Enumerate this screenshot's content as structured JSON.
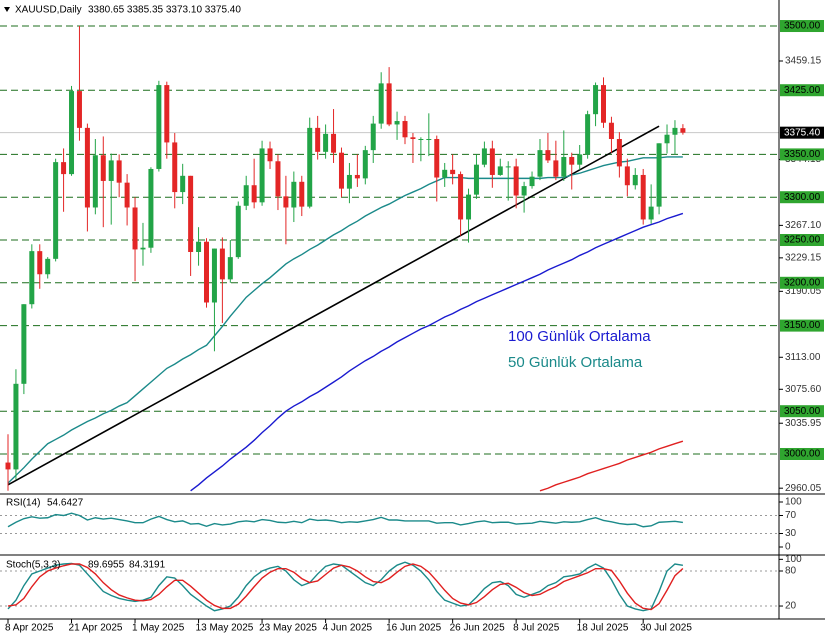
{
  "chart_data": [
    {
      "type": "candlestick",
      "symbol": "XAUUSD,Daily",
      "ohlc_label": "3380.65 3385.35 3373.10 3375.40",
      "categories": [
        "8 Apr 2025",
        null,
        null,
        null,
        null,
        null,
        null,
        null,
        "21 Apr 2025",
        null,
        null,
        null,
        null,
        null,
        null,
        null,
        "1 May 2025",
        null,
        null,
        null,
        null,
        null,
        null,
        null,
        "13 May 2025",
        null,
        null,
        null,
        null,
        null,
        null,
        null,
        "23 May 2025",
        null,
        null,
        null,
        null,
        null,
        null,
        null,
        "4 Jun 2025",
        null,
        null,
        null,
        null,
        null,
        null,
        null,
        "16 Jun 2025",
        null,
        null,
        null,
        null,
        null,
        null,
        null,
        "26 Jun 2025",
        null,
        null,
        null,
        null,
        null,
        null,
        null,
        "8 Jul 2025",
        null,
        null,
        null,
        null,
        null,
        null,
        null,
        "18 Jul 2025",
        null,
        null,
        null,
        null,
        null,
        null,
        null,
        "30 Jul 2025",
        null,
        null,
        null,
        null,
        null
      ],
      "open": [
        2990,
        2982,
        3082,
        3175,
        3237,
        3210,
        3228,
        3341,
        3327,
        3424,
        3381,
        3288,
        3349,
        3319,
        3343,
        3317,
        3288,
        3239,
        3241,
        3333,
        3431,
        3364,
        3306,
        3325,
        3236,
        3248,
        3177,
        3240,
        3204,
        3230,
        3290,
        3314,
        3294,
        3357,
        3342,
        3301,
        3288,
        3318,
        3289,
        3381,
        3353,
        3374,
        3352,
        3310,
        3326,
        3322,
        3355,
        3386,
        3433,
        3385,
        3389,
        3370,
        3368,
        3368,
        3368,
        3323,
        3332,
        3327,
        3274,
        3303,
        3338,
        3357,
        3326,
        3336,
        3336,
        3302,
        3313,
        3324,
        3355,
        3343,
        3324,
        3347,
        3338,
        3350,
        3397,
        3431,
        3387,
        3368,
        3336,
        3314,
        3326,
        3274,
        3289,
        3363,
        3373,
        3380.65
      ],
      "high": [
        3023,
        3099,
        3175,
        3245,
        3245,
        3230,
        3345,
        3357,
        3430,
        3500,
        3386,
        3368,
        3371,
        3351,
        3350,
        3327,
        3300,
        3270,
        3335,
        3436,
        3435,
        3375,
        3339,
        3325,
        3265,
        3252,
        3240,
        3253,
        3250,
        3295,
        3325,
        3345,
        3366,
        3365,
        3350,
        3325,
        3330,
        3325,
        3393,
        3395,
        3385,
        3403,
        3358,
        3340,
        3350,
        3360,
        3395,
        3446,
        3452,
        3400,
        3395,
        3375,
        3370,
        3398,
        3372,
        3340,
        3350,
        3330,
        3310,
        3350,
        3365,
        3366,
        3345,
        3342,
        3345,
        3318,
        3330,
        3368,
        3375,
        3366,
        3378,
        3352,
        3361,
        3401,
        3434,
        3440,
        3394,
        3376,
        3345,
        3334,
        3333,
        3315,
        3363,
        3385,
        3390,
        3385.35
      ],
      "low": [
        2957,
        2970,
        3070,
        3170,
        3193,
        3205,
        3225,
        3283,
        3325,
        3366,
        3260,
        3280,
        3265,
        3268,
        3300,
        3267,
        3202,
        3220,
        3235,
        3330,
        3345,
        3287,
        3292,
        3208,
        3220,
        3171,
        3120,
        3153,
        3200,
        3228,
        3285,
        3287,
        3290,
        3333,
        3285,
        3245,
        3271,
        3278,
        3287,
        3344,
        3345,
        3340,
        3300,
        3293,
        3312,
        3315,
        3340,
        3380,
        3383,
        3367,
        3362,
        3340,
        3342,
        3348,
        3295,
        3312,
        3315,
        3255,
        3247,
        3298,
        3335,
        3311,
        3325,
        3296,
        3287,
        3282,
        3310,
        3320,
        3340,
        3320,
        3319,
        3309,
        3332,
        3345,
        3383,
        3381,
        3352,
        3323,
        3301,
        3309,
        3268,
        3269,
        3280,
        3351,
        3350,
        3373.1
      ],
      "close": [
        2982,
        3082,
        3175,
        3237,
        3210,
        3228,
        3341,
        3327,
        3424,
        3381,
        3288,
        3349,
        3319,
        3343,
        3317,
        3288,
        3239,
        3241,
        3333,
        3431,
        3364,
        3306,
        3325,
        3236,
        3248,
        3177,
        3240,
        3204,
        3230,
        3290,
        3314,
        3294,
        3357,
        3342,
        3301,
        3288,
        3318,
        3289,
        3381,
        3353,
        3374,
        3352,
        3310,
        3326,
        3322,
        3355,
        3386,
        3433,
        3385,
        3389,
        3370,
        3368,
        3368,
        3368,
        3323,
        3332,
        3327,
        3274,
        3303,
        3338,
        3357,
        3326,
        3336,
        3336,
        3302,
        3313,
        3324,
        3355,
        3343,
        3324,
        3347,
        3338,
        3350,
        3397,
        3431,
        3387,
        3368,
        3336,
        3314,
        3326,
        3274,
        3289,
        3363,
        3373,
        3381,
        3375.4
      ],
      "up_color": "#22a447",
      "down_color": "#e32626",
      "series": [
        {
          "name": "100 Günlük Ortalama",
          "color": "#1a1ad0",
          "values": [
            null,
            null,
            null,
            null,
            null,
            null,
            null,
            null,
            null,
            null,
            null,
            null,
            null,
            null,
            null,
            null,
            null,
            null,
            null,
            null,
            null,
            null,
            null,
            2957,
            2964,
            2972,
            2979,
            2986,
            2994,
            3001,
            3008,
            3016,
            3025,
            3033,
            3042,
            3050,
            3056,
            3061,
            3067,
            3072,
            3078,
            3084,
            3090,
            3097,
            3103,
            3109,
            3114,
            3120,
            3125,
            3131,
            3136,
            3141,
            3146,
            3150,
            3155,
            3160,
            3164,
            3169,
            3173,
            3178,
            3182,
            3186,
            3190,
            3194,
            3198,
            3202,
            3206,
            3210,
            3215,
            3219,
            3223,
            3227,
            3232,
            3236,
            3241,
            3245,
            3249,
            3253,
            3257,
            3261,
            3265,
            3268,
            3271,
            3275,
            3278,
            3281
          ]
        },
        {
          "name": "50 Günlük Ortalama",
          "color": "#1b8a8a",
          "values": [
            2966,
            2975,
            2984,
            2994,
            3003,
            3012,
            3017,
            3022,
            3028,
            3033,
            3038,
            3042,
            3047,
            3051,
            3056,
            3060,
            3068,
            3076,
            3084,
            3092,
            3100,
            3105,
            3111,
            3116,
            3122,
            3127,
            3138,
            3149,
            3161,
            3172,
            3183,
            3191,
            3199,
            3206,
            3214,
            3222,
            3228,
            3233,
            3239,
            3244,
            3250,
            3256,
            3261,
            3267,
            3272,
            3278,
            3283,
            3288,
            3292,
            3297,
            3302,
            3306,
            3310,
            3315,
            3319,
            3323,
            3323,
            3323,
            3322,
            3322,
            3322,
            3322,
            3322,
            3322,
            3322,
            3322,
            3322,
            3322,
            3323,
            3323,
            3323,
            3326,
            3328,
            3331,
            3334,
            3337,
            3339,
            3341,
            3342,
            3344,
            3346,
            3346,
            3346,
            3347,
            3347,
            3347
          ]
        },
        {
          "color": "#e02020",
          "values": [
            null,
            null,
            null,
            null,
            null,
            null,
            null,
            null,
            null,
            null,
            null,
            null,
            null,
            null,
            null,
            null,
            null,
            null,
            null,
            null,
            null,
            null,
            null,
            null,
            null,
            null,
            null,
            null,
            null,
            null,
            null,
            null,
            null,
            null,
            null,
            null,
            null,
            null,
            null,
            null,
            null,
            null,
            null,
            null,
            null,
            null,
            null,
            null,
            null,
            null,
            null,
            null,
            null,
            null,
            null,
            null,
            null,
            null,
            null,
            null,
            null,
            null,
            null,
            null,
            null,
            null,
            null,
            2957,
            2960,
            2964,
            2967,
            2970,
            2973,
            2977,
            2980,
            2983,
            2986,
            2989,
            2993,
            2996,
            2999,
            3002,
            3006,
            3009,
            3012,
            3015
          ]
        }
      ],
      "trendline": {
        "color": "#000000",
        "values": [
          2964,
          null,
          null,
          null,
          null,
          null,
          null,
          null,
          null,
          null,
          null,
          null,
          null,
          null,
          null,
          null,
          null,
          null,
          null,
          null,
          null,
          null,
          null,
          null,
          null,
          null,
          null,
          null,
          null,
          null,
          null,
          null,
          null,
          null,
          null,
          null,
          null,
          null,
          null,
          null,
          null,
          null,
          null,
          null,
          null,
          null,
          null,
          null,
          null,
          null,
          null,
          null,
          null,
          null,
          null,
          null,
          null,
          null,
          null,
          null,
          null,
          null,
          null,
          null,
          null,
          null,
          null,
          null,
          null,
          null,
          null,
          null,
          null,
          null,
          null,
          null,
          null,
          null,
          null,
          null,
          null,
          null,
          3383,
          null,
          null,
          null
        ]
      },
      "ylim": [
        2955.6,
        3530.4
      ],
      "yticks": [
        {
          "value": 3459.15,
          "label": "3459.15"
        },
        {
          "value": 3344.15,
          "label": "3344.15"
        },
        {
          "value": 3267.1,
          "label": "3267.10"
        },
        {
          "value": 3229.15,
          "label": "3229.15"
        },
        {
          "value": 3190.05,
          "label": "3190.05"
        },
        {
          "value": 3113,
          "label": "3113.00"
        },
        {
          "value": 3075.6,
          "label": "3075.60"
        },
        {
          "value": 3035.95,
          "label": "3035.95"
        },
        {
          "value": 2960.05,
          "label": "2960.05"
        }
      ],
      "levels": [
        {
          "value": 3500,
          "label": "3500.00"
        },
        {
          "value": 3425,
          "label": "3425.00"
        },
        {
          "value": 3350,
          "label": "3350.00"
        },
        {
          "value": 3300,
          "label": "3300.00"
        },
        {
          "value": 3250,
          "label": "3250.00"
        },
        {
          "value": 3200,
          "label": "3200.00"
        },
        {
          "value": 3150,
          "label": "3150.00"
        },
        {
          "value": 3050,
          "label": "3050.00"
        },
        {
          "value": 3000,
          "label": "3000.00"
        }
      ],
      "level_color": "#1d6e1d",
      "level_box_color": "#2fa52f",
      "last_price": {
        "value": 3375.4,
        "label": "3375.40"
      }
    },
    {
      "type": "line",
      "title": "RSI(14)",
      "series": [
        {
          "color": "#1b8a8a",
          "values": [
            45,
            55,
            63,
            67,
            64,
            65,
            72,
            70,
            75,
            70,
            60,
            65,
            62,
            64,
            61,
            58,
            54,
            54,
            62,
            68,
            61,
            56,
            58,
            51,
            52,
            46,
            52,
            49,
            51,
            56,
            58,
            56,
            61,
            59,
            55,
            54,
            57,
            54,
            62,
            59,
            60,
            58,
            54,
            56,
            55,
            58,
            61,
            66,
            60,
            60,
            58,
            58,
            58,
            58,
            53,
            54,
            54,
            49,
            52,
            56,
            58,
            54,
            55,
            55,
            51,
            52,
            53,
            57,
            55,
            53,
            56,
            55,
            56,
            61,
            65,
            59,
            56,
            52,
            50,
            51,
            45,
            47,
            55,
            56,
            57,
            54.6427
          ]
        }
      ],
      "ylim": [
        -13.3,
        113.3
      ],
      "yticks": [
        100,
        70,
        30,
        0
      ],
      "levels": [
        70,
        30
      ]
    },
    {
      "type": "line",
      "title": "Stoch(5,3,3)",
      "series": [
        {
          "color": "#1b8a8a",
          "values": [
            15,
            30,
            55,
            75,
            80,
            85,
            90,
            92,
            93,
            90,
            75,
            60,
            45,
            38,
            33,
            30,
            28,
            30,
            35,
            55,
            70,
            68,
            55,
            40,
            30,
            20,
            12,
            15,
            20,
            35,
            55,
            70,
            80,
            85,
            88,
            80,
            65,
            55,
            60,
            75,
            88,
            92,
            90,
            80,
            70,
            60,
            55,
            65,
            80,
            90,
            95,
            90,
            80,
            65,
            45,
            30,
            25,
            20,
            22,
            35,
            50,
            60,
            62,
            55,
            40,
            35,
            40,
            45,
            55,
            60,
            70,
            72,
            75,
            85,
            92,
            85,
            65,
            40,
            20,
            15,
            12,
            15,
            45,
            80,
            92,
            89.6955
          ]
        },
        {
          "color": "#e02020",
          "values": [
            20,
            22,
            33,
            53,
            70,
            80,
            85,
            89,
            92,
            92,
            86,
            75,
            60,
            48,
            39,
            34,
            30,
            29,
            31,
            40,
            53,
            64,
            64,
            54,
            42,
            30,
            21,
            16,
            16,
            23,
            37,
            53,
            68,
            78,
            84,
            84,
            78,
            67,
            60,
            63,
            74,
            85,
            90,
            87,
            80,
            70,
            62,
            60,
            67,
            78,
            88,
            92,
            88,
            78,
            63,
            47,
            33,
            25,
            22,
            26,
            36,
            48,
            57,
            59,
            52,
            43,
            38,
            40,
            47,
            53,
            62,
            67,
            72,
            77,
            84,
            84,
            81,
            63,
            42,
            25,
            16,
            14,
            24,
            47,
            72,
            84.3191
          ]
        }
      ],
      "ylim": [
        -0.5,
        104
      ],
      "yticks": [
        100,
        80,
        20
      ],
      "levels": [
        80,
        20
      ]
    }
  ]
}
